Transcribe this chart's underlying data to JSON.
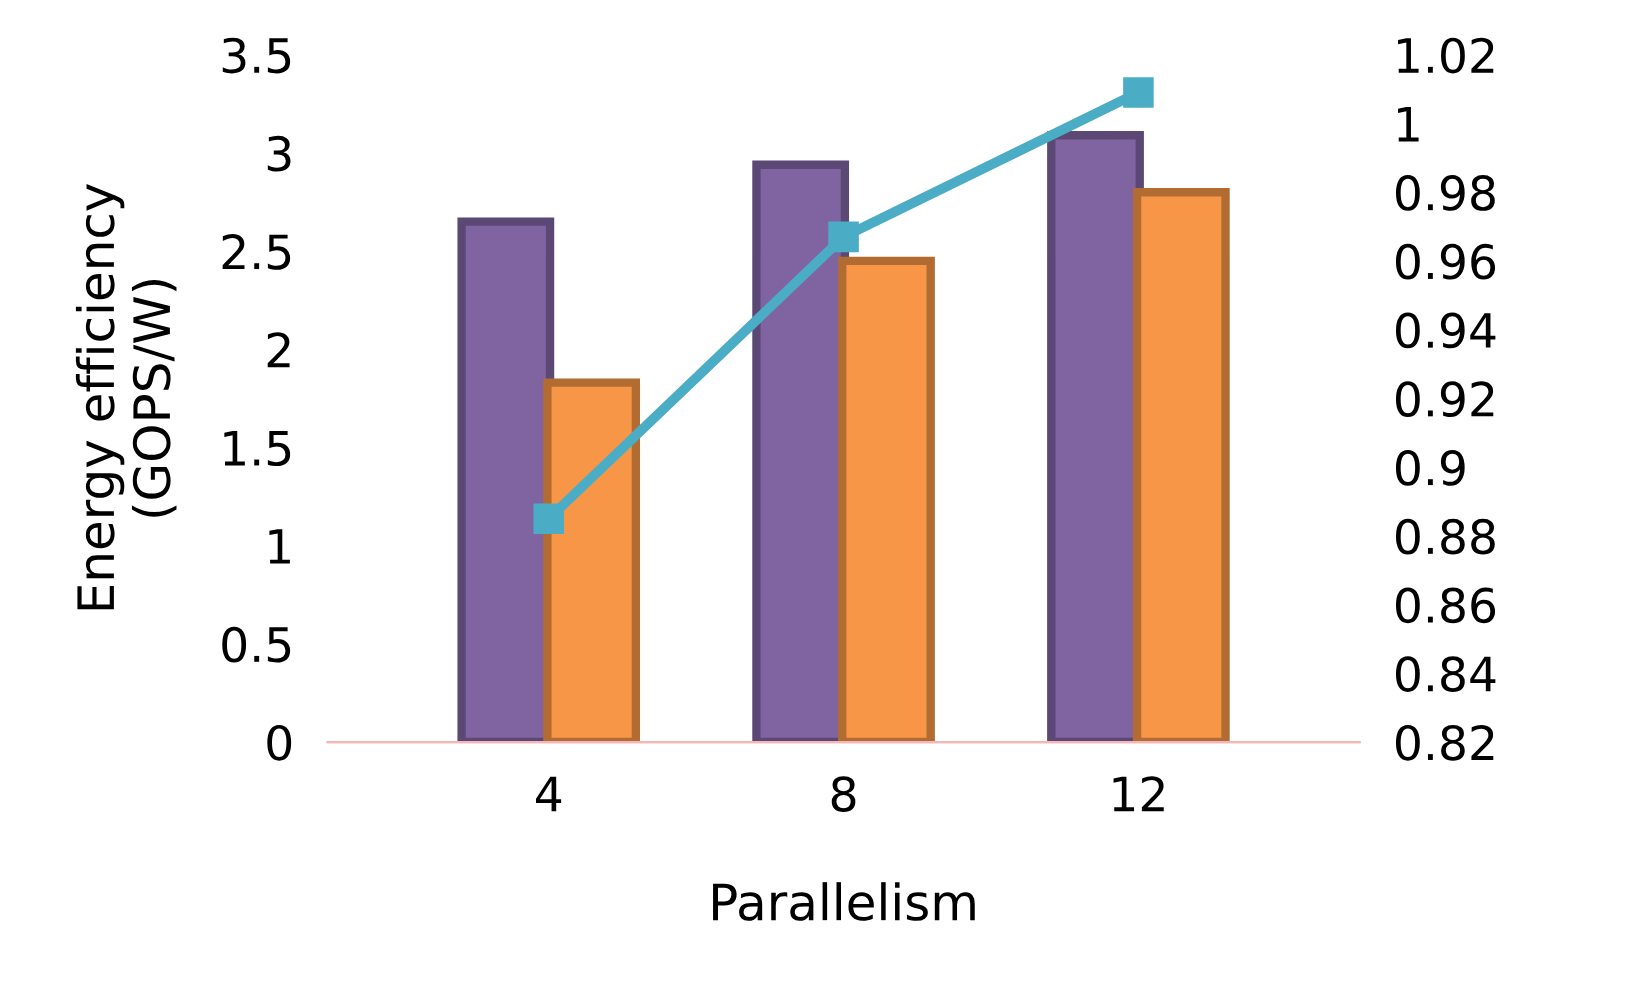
{
  "chart_data": {
    "type": "bar",
    "xlabel": "Parallelism",
    "ylabel": "Energy efficiency\n(GOPS/W)",
    "categories": [
      "4",
      "8",
      "12"
    ],
    "series": [
      {
        "color": "#8064a2",
        "values": [
          2.65,
          2.94,
          3.09
        ]
      },
      {
        "color": "#f79646",
        "values": [
          1.83,
          2.45,
          2.8
        ]
      },
      {
        "type": "line",
        "axis": "y2",
        "color": "#4bacc6",
        "values": [
          0.885,
          0.967,
          1.009
        ],
        "marker": "square"
      }
    ],
    "ylim": [
      0,
      3.5
    ],
    "yticks": [
      0,
      0.5,
      1,
      1.5,
      2,
      2.5,
      3,
      3.5
    ],
    "y2lim": [
      0.82,
      1.02
    ],
    "y2ticks": [
      0.82,
      0.84,
      0.86,
      0.88,
      0.9,
      0.92,
      0.94,
      0.96,
      0.98,
      1,
      1.02
    ],
    "grid": false,
    "legend": false
  }
}
